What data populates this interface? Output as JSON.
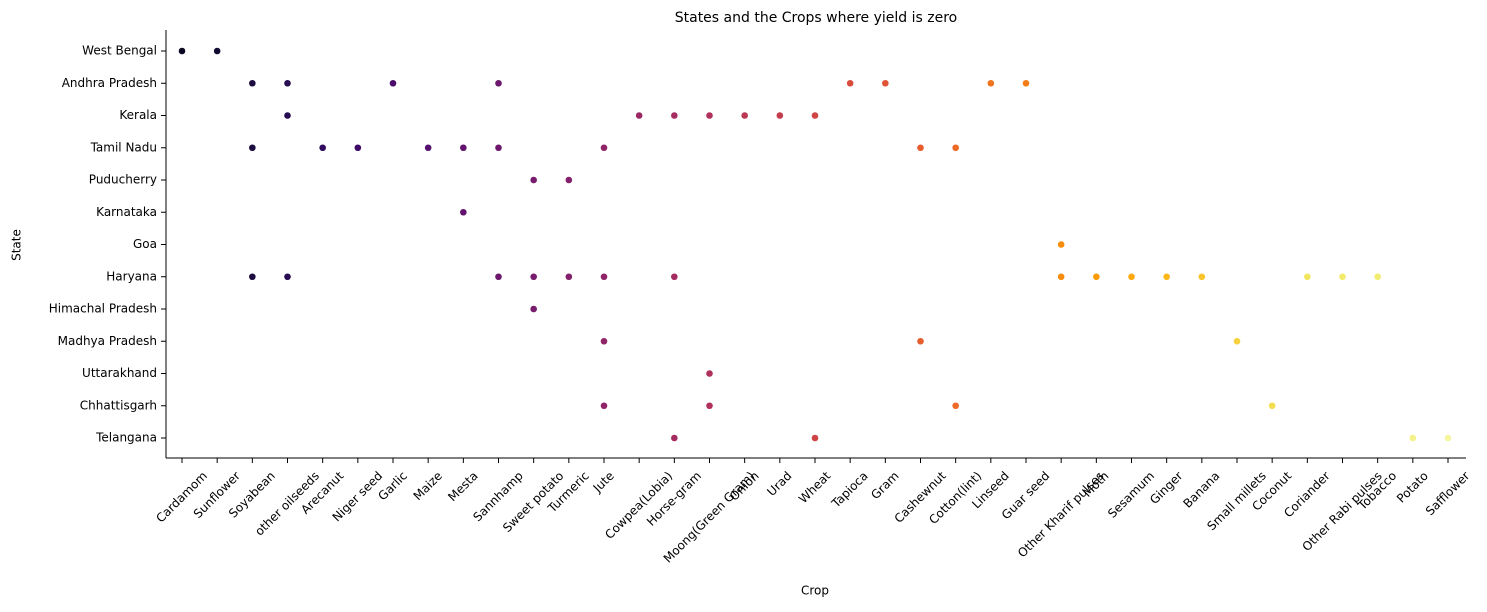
{
  "chart_data": {
    "type": "strip",
    "title": "States and the Crops where yield is zero",
    "x_label": "Crop",
    "y_label": "State",
    "categories": [
      "Cardamom",
      "Sunflower",
      "Soyabean",
      "other oilseeds",
      "Arecanut",
      "Niger seed",
      "Garlic",
      "Maize",
      "Mesta",
      "Sannhamp",
      "Sweet potato",
      "Turmeric",
      "Jute",
      "Cowpea(Lobia)",
      "Horse-gram",
      "Moong(Green Gram)",
      "Onion",
      "Urad",
      "Wheat",
      "Tapioca",
      "Gram",
      "Cashewnut",
      "Cotton(lint)",
      "Linseed",
      "Guar seed",
      "Other Kharif pulses",
      "Moth",
      "Sesamum",
      "Ginger",
      "Banana",
      "Small millets",
      "Coconut",
      "Coriander",
      "Other  Rabi pulses",
      "Tobacco",
      "Potato",
      "Safflower"
    ],
    "y_categories": [
      "West Bengal",
      "Andhra Pradesh",
      "Kerala",
      "Tamil Nadu",
      "Puducherry",
      "Karnataka",
      "Goa",
      "Haryana",
      "Himachal Pradesh",
      "Madhya Pradesh",
      "Uttarakhand",
      "Chhattisgarh",
      "Telangana"
    ],
    "series": [
      {
        "color": "#0a0722",
        "values": [
          "West Bengal"
        ]
      },
      {
        "color": "#120a32",
        "values": [
          "West Bengal"
        ]
      },
      {
        "color": "#1b0c41",
        "values": [
          "Andhra Pradesh",
          "Tamil Nadu",
          "Haryana"
        ]
      },
      {
        "color": "#260c51",
        "values": [
          "Andhra Pradesh",
          "Kerala",
          "Haryana"
        ]
      },
      {
        "color": "#320a5e",
        "values": [
          "Tamil Nadu"
        ]
      },
      {
        "color": "#3e0a66",
        "values": [
          "Tamil Nadu"
        ]
      },
      {
        "color": "#4a0c6b",
        "values": [
          "Andhra Pradesh"
        ]
      },
      {
        "color": "#56106e",
        "values": [
          "Tamil Nadu"
        ]
      },
      {
        "color": "#61136e",
        "values": [
          "Tamil Nadu",
          "Karnataka"
        ]
      },
      {
        "color": "#6d186e",
        "values": [
          "Andhra Pradesh",
          "Tamil Nadu",
          "Haryana"
        ]
      },
      {
        "color": "#781c6d",
        "values": [
          "Puducherry",
          "Haryana",
          "Himachal Pradesh"
        ]
      },
      {
        "color": "#83206b",
        "values": [
          "Puducherry",
          "Haryana"
        ]
      },
      {
        "color": "#8f2469",
        "values": [
          "Tamil Nadu",
          "Haryana",
          "Madhya Pradesh",
          "Chhattisgarh"
        ]
      },
      {
        "color": "#9a2865",
        "values": [
          "Kerala"
        ]
      },
      {
        "color": "#a52c60",
        "values": [
          "Kerala",
          "Haryana",
          "Telangana"
        ]
      },
      {
        "color": "#b0315b",
        "values": [
          "Kerala",
          "Uttarakhand",
          "Chhattisgarh"
        ]
      },
      {
        "color": "#bb3754",
        "values": [
          "Kerala"
        ]
      },
      {
        "color": "#c53d4d",
        "values": [
          "Kerala"
        ]
      },
      {
        "color": "#cf4446",
        "values": [
          "Kerala",
          "Telangana"
        ]
      },
      {
        "color": "#d84c3e",
        "values": [
          "Andhra Pradesh"
        ]
      },
      {
        "color": "#e05536",
        "values": [
          "Andhra Pradesh"
        ]
      },
      {
        "color": "#e75e2e",
        "values": [
          "Tamil Nadu",
          "Madhya Pradesh"
        ]
      },
      {
        "color": "#ed6925",
        "values": [
          "Tamil Nadu",
          "Chhattisgarh"
        ]
      },
      {
        "color": "#f1731d",
        "values": [
          "Andhra Pradesh"
        ]
      },
      {
        "color": "#f57d15",
        "values": [
          "Andhra Pradesh"
        ]
      },
      {
        "color": "#f88c0c",
        "values": [
          "Goa",
          "Haryana"
        ]
      },
      {
        "color": "#fb9b06",
        "values": [
          "Haryana"
        ]
      },
      {
        "color": "#fba90f",
        "values": [
          "Haryana"
        ]
      },
      {
        "color": "#fbb61a",
        "values": [
          "Haryana"
        ]
      },
      {
        "color": "#f9c42a",
        "values": [
          "Haryana"
        ]
      },
      {
        "color": "#f7d13d",
        "values": [
          "Madhya Pradesh"
        ]
      },
      {
        "color": "#f4dd50",
        "values": [
          "Chhattisgarh"
        ]
      },
      {
        "color": "#f2e661",
        "values": [
          "Haryana"
        ]
      },
      {
        "color": "#f2ea69",
        "values": [
          "Haryana"
        ]
      },
      {
        "color": "#f1ed71",
        "values": [
          "Haryana"
        ]
      },
      {
        "color": "#f3f38a",
        "values": [
          "Telangana"
        ]
      },
      {
        "color": "#f6f6a0",
        "values": [
          "Telangana"
        ]
      }
    ]
  }
}
